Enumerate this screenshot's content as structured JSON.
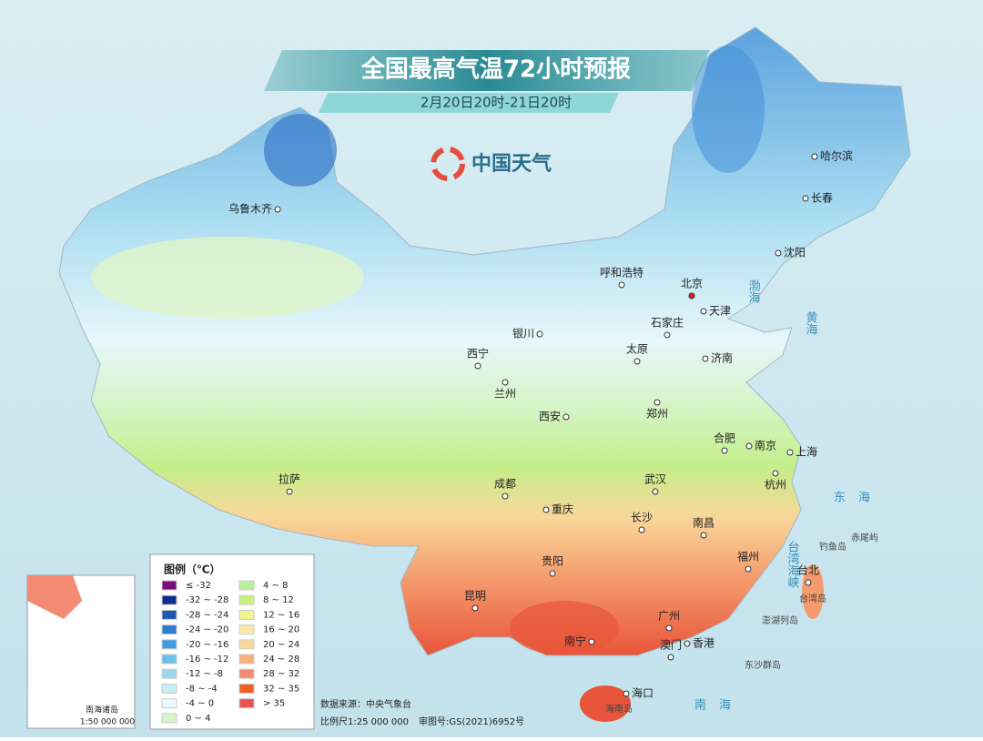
{
  "header": {
    "title": "全国最高气温72小时预报",
    "subtitle": "2月20日20时-21日20时",
    "logo": "中国天气"
  },
  "cities": [
    {
      "name": "乌鲁木齐"
    },
    {
      "name": "哈尔滨"
    },
    {
      "name": "长春"
    },
    {
      "name": "沈阳"
    },
    {
      "name": "呼和浩特"
    },
    {
      "name": "北京"
    },
    {
      "name": "天津"
    },
    {
      "name": "石家庄"
    },
    {
      "name": "银川"
    },
    {
      "name": "太原"
    },
    {
      "name": "济南"
    },
    {
      "name": "西宁"
    },
    {
      "name": "兰州"
    },
    {
      "name": "西安"
    },
    {
      "name": "郑州"
    },
    {
      "name": "合肥"
    },
    {
      "name": "南京"
    },
    {
      "name": "上海"
    },
    {
      "name": "拉萨"
    },
    {
      "name": "成都"
    },
    {
      "name": "武汉"
    },
    {
      "name": "杭州"
    },
    {
      "name": "重庆"
    },
    {
      "name": "长沙"
    },
    {
      "name": "南昌"
    },
    {
      "name": "福州"
    },
    {
      "name": "台北"
    },
    {
      "name": "贵阳"
    },
    {
      "name": "昆明"
    },
    {
      "name": "广州"
    },
    {
      "name": "南宁"
    },
    {
      "name": "香港"
    },
    {
      "name": "澳门"
    },
    {
      "name": "海口"
    }
  ],
  "places": [
    {
      "name": "钓鱼岛"
    },
    {
      "name": "赤尾屿"
    },
    {
      "name": "台湾岛"
    },
    {
      "name": "澎湖列岛"
    },
    {
      "name": "东沙群岛"
    },
    {
      "name": "海南岛"
    }
  ],
  "seas": [
    {
      "name": "渤海"
    },
    {
      "name": "黄海"
    },
    {
      "name": "东海"
    },
    {
      "name": "台湾海峡"
    },
    {
      "name": "南海"
    }
  ],
  "legend": {
    "title": "图例（℃）",
    "items": [
      {
        "label": "≤ -32",
        "color": "#7a0e7a"
      },
      {
        "label": "-32 ~ -28",
        "color": "#0b2f8a"
      },
      {
        "label": "-28 ~ -24",
        "color": "#1e58b0"
      },
      {
        "label": "-24 ~ -20",
        "color": "#2a7fd0"
      },
      {
        "label": "-20 ~ -16",
        "color": "#3d9be0"
      },
      {
        "label": "-16 ~ -12",
        "color": "#6cc0ea"
      },
      {
        "label": "-12 ~ -8",
        "color": "#9ad8f0"
      },
      {
        "label": "-8 ~ -4",
        "color": "#c6ecf6"
      },
      {
        "label": "-4 ~ 0",
        "color": "#eaf9fb"
      },
      {
        "label": "0 ~ 4",
        "color": "#d6f5c8"
      },
      {
        "label": "4 ~ 8",
        "color": "#b8ef9e"
      },
      {
        "label": "8 ~ 12",
        "color": "#c9f27a"
      },
      {
        "label": "12 ~ 16",
        "color": "#f4f48e"
      },
      {
        "label": "16 ~ 20",
        "color": "#fae8a8"
      },
      {
        "label": "20 ~ 24",
        "color": "#f9d79a"
      },
      {
        "label": "24 ~ 28",
        "color": "#f8b079"
      },
      {
        "label": "28 ~ 32",
        "color": "#f38b74"
      },
      {
        "label": "32 ~ 35",
        "color": "#f06022"
      },
      {
        "label": "> 35",
        "color": "#e85252"
      }
    ]
  },
  "footer": {
    "source": "数据来源：中央气象台",
    "scale": "比例尺1:25 000 000",
    "approval": "审图号:GS(2021)6952号"
  },
  "inset": {
    "label": "南海诸岛",
    "scale": "1:50 000 000"
  }
}
